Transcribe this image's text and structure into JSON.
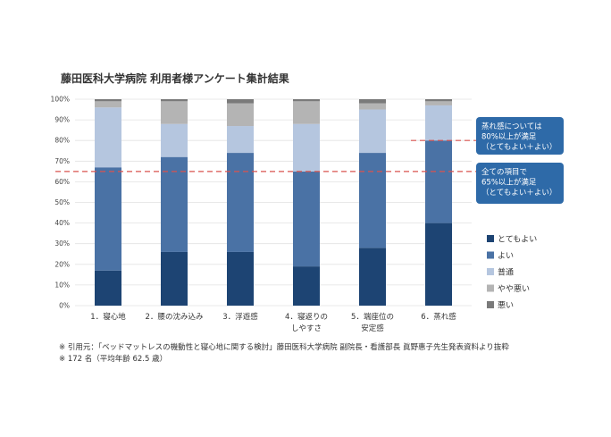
{
  "chart_data": {
    "type": "bar",
    "stacked": true,
    "title": "藤田医科大学病院 利用者様アンケート集計結果",
    "categories": [
      [
        "1．寝心地"
      ],
      [
        "2．腰の沈み込み"
      ],
      [
        "3．浮遊感"
      ],
      [
        "4．寝返りの",
        "しやすさ"
      ],
      [
        "5．端座位の",
        "安定感"
      ],
      [
        "6．蒸れ感"
      ]
    ],
    "ylim": [
      0,
      100
    ],
    "yticks": [
      "0%",
      "10%",
      "20%",
      "30%",
      "40%",
      "50%",
      "60%",
      "70%",
      "80%",
      "90%",
      "100%"
    ],
    "grid": true,
    "legend_position": "right",
    "series": [
      {
        "name": "とてもよい",
        "color": "#1d4473",
        "values": [
          17,
          26,
          26,
          19,
          28,
          40
        ]
      },
      {
        "name": "よい",
        "color": "#4a72a5",
        "values": [
          50,
          46,
          48,
          46,
          46,
          40
        ]
      },
      {
        "name": "普通",
        "color": "#b5c6df",
        "values": [
          29,
          16,
          13,
          23,
          21,
          17
        ]
      },
      {
        "name": "やや悪い",
        "color": "#b4b4b4",
        "values": [
          3,
          11,
          11,
          11,
          3,
          2
        ]
      },
      {
        "name": "悪い",
        "color": "#7a7a7a",
        "values": [
          1,
          1,
          2,
          1,
          2,
          1
        ]
      }
    ],
    "reference_lines": [
      {
        "value": 65,
        "color": "#d9534f",
        "label": [
          "全ての項目で",
          "65%以上が満足",
          "（とてもよい＋よい）"
        ]
      },
      {
        "value": 80,
        "color": "#d9534f",
        "label": [
          "蒸れ感については",
          "80%以上が満足",
          "（とてもよい＋よい）"
        ]
      }
    ],
    "callout_color": "#2e6aa8"
  },
  "footnotes": [
    "※ 引用元：「ベッドマットレスの機動性と寝心地に関する検討」藤田医科大学病院 副院長・看護部長 眞野惠子先生発表資料より抜粋",
    "※ 172 名（平均年齢 62.5 歳）"
  ]
}
